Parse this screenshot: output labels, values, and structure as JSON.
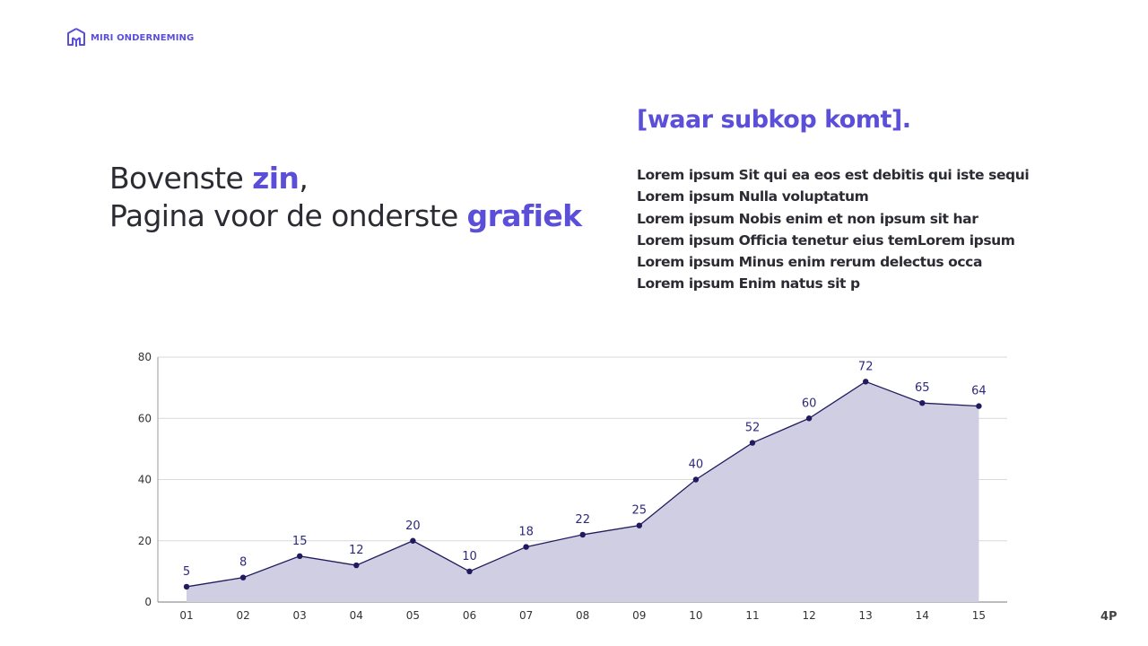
{
  "brand": {
    "name": "MIRI ONDERNEMING",
    "logo_icon": "house-logo-icon",
    "color": "#5b4fd9"
  },
  "headline": {
    "line1_pre": "Bovenste ",
    "line1_accent": "zin",
    "line1_post": ",",
    "line2_pre": "Pagina voor de onderste ",
    "line2_accent": "grafiek"
  },
  "subheading": "[waar subkop komt].",
  "body_lines": [
    "Lorem ipsum Sit qui ea eos est debitis qui iste sequi",
    "Lorem ipsum Nulla voluptatum",
    "Lorem ipsum Nobis enim et non ipsum sit har",
    "Lorem ipsum Officia tenetur eius temLorem ipsum",
    "Lorem ipsum Minus enim rerum delectus occa",
    "Lorem ipsum Enim natus sit p"
  ],
  "page_number": "4P",
  "chart_data": {
    "type": "area",
    "categories": [
      "01",
      "02",
      "03",
      "04",
      "05",
      "06",
      "07",
      "08",
      "09",
      "10",
      "11",
      "12",
      "13",
      "14",
      "15"
    ],
    "values": [
      5,
      8,
      15,
      12,
      20,
      10,
      18,
      22,
      25,
      40,
      52,
      60,
      72,
      65,
      64
    ],
    "ylim": [
      0,
      80
    ],
    "yticks": [
      0,
      20,
      40,
      60,
      80
    ],
    "grid": true,
    "data_labels": true,
    "colors": {
      "line": "#1f1b5e",
      "fill": "#d0cee2",
      "marker": "#1f1b5e",
      "label": "#2e2a7a",
      "grid": "#d9d9d9"
    }
  }
}
